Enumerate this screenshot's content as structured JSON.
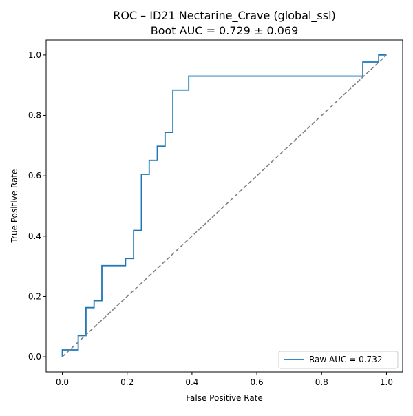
{
  "chart_data": {
    "type": "line",
    "title": "ROC – ID21 Nectarine_Crave (global_ssl)",
    "subtitle": "Boot AUC = 0.729 ± 0.069",
    "xlabel": "False Positive Rate",
    "ylabel": "True Positive Rate",
    "xlim": [
      -0.05,
      1.05
    ],
    "ylim": [
      -0.05,
      1.05
    ],
    "xticks": [
      0.0,
      0.2,
      0.4,
      0.6,
      0.8,
      1.0
    ],
    "yticks": [
      0.0,
      0.2,
      0.4,
      0.6,
      0.8,
      1.0
    ],
    "xtick_labels": [
      "0.0",
      "0.2",
      "0.4",
      "0.6",
      "0.8",
      "1.0"
    ],
    "ytick_labels": [
      "0.0",
      "0.2",
      "0.4",
      "0.6",
      "0.8",
      "1.0"
    ],
    "grid": false,
    "legend_position": "lower-right",
    "series": [
      {
        "name": "Raw AUC = 0.732",
        "color": "#1f77b4",
        "style": "solid",
        "x": [
          0.0,
          0.0,
          0.049,
          0.049,
          0.073,
          0.073,
          0.098,
          0.098,
          0.122,
          0.122,
          0.195,
          0.195,
          0.22,
          0.22,
          0.244,
          0.244,
          0.268,
          0.268,
          0.293,
          0.293,
          0.317,
          0.317,
          0.341,
          0.341,
          0.39,
          0.39,
          0.927,
          0.927,
          0.976,
          0.976,
          1.0
        ],
        "y": [
          0.0,
          0.023,
          0.023,
          0.07,
          0.07,
          0.163,
          0.163,
          0.186,
          0.186,
          0.302,
          0.302,
          0.326,
          0.326,
          0.419,
          0.419,
          0.605,
          0.605,
          0.651,
          0.651,
          0.698,
          0.698,
          0.744,
          0.744,
          0.884,
          0.884,
          0.93,
          0.93,
          0.977,
          0.977,
          1.0,
          1.0
        ]
      },
      {
        "color": "#808080",
        "style": "dashed",
        "x": [
          0.0,
          1.0
        ],
        "y": [
          0.0,
          1.0
        ]
      }
    ]
  }
}
